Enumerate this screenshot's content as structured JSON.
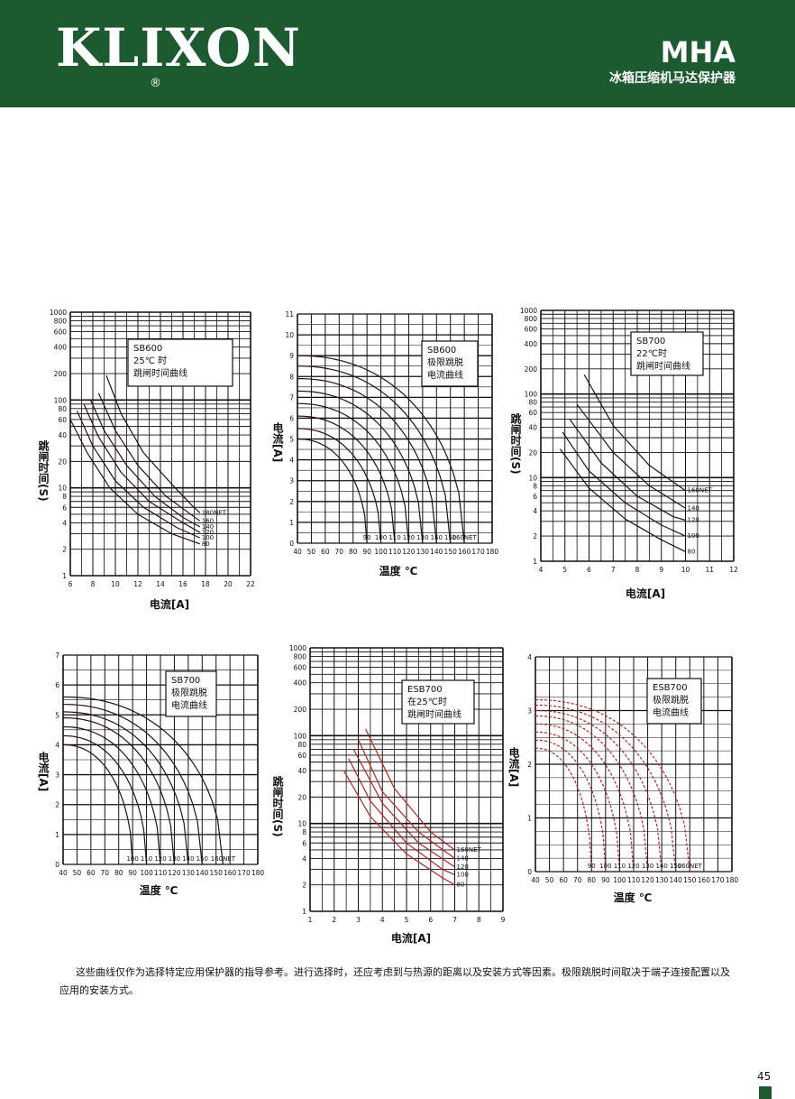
{
  "header": {
    "logo": "KLIXON",
    "logo_reg": "®",
    "model": "MHA",
    "subtitle": "冰箱压缩机马达保护器"
  },
  "footnote": "这些曲线仅作为选择特定应用保护器的指导参考。进行选择时，还应考虑到与热源的距离以及安装方式等因素。极限跳脱时间取决于端子连接配置以及应用的安装方式。",
  "page_number": "45",
  "colors": {
    "header_bg": "#1c5a30",
    "curve_dark": "#2a0e0e",
    "curve_red": "#c0201c",
    "grid": "#111111"
  },
  "chart_data": [
    {
      "type": "line",
      "legend": [
        "SB600",
        "25℃ 时",
        "跳闸时间曲线"
      ],
      "xlabel": "电流[A]",
      "ylabel": "跳闸时间(S)",
      "xlim": [
        6,
        22
      ],
      "ylim": [
        1,
        1000
      ],
      "yscale": "log",
      "x_ticks": [
        6,
        8,
        10,
        12,
        14,
        16,
        18,
        20,
        22
      ],
      "y_ticks": [
        1,
        2,
        4,
        6,
        8,
        10,
        20,
        40,
        60,
        80,
        100,
        200,
        400,
        600,
        800,
        1000
      ],
      "series": [
        {
          "name": "80",
          "x": [
            6.0,
            7.5,
            9.5,
            12.0,
            15.0,
            17.5
          ],
          "y": [
            60,
            25,
            10,
            5,
            3,
            2.3
          ]
        },
        {
          "name": "100",
          "x": [
            6.6,
            8.0,
            10.0,
            12.5,
            15.5,
            17.5
          ],
          "y": [
            75,
            30,
            12,
            6,
            3.5,
            2.7
          ]
        },
        {
          "name": "120",
          "x": [
            7.2,
            8.5,
            10.5,
            13.0,
            16.0,
            17.5
          ],
          "y": [
            90,
            38,
            15,
            7,
            4,
            3.1
          ]
        },
        {
          "name": "140",
          "x": [
            7.8,
            9.0,
            11.0,
            13.5,
            16.0,
            17.5
          ],
          "y": [
            100,
            45,
            18,
            8,
            4.6,
            3.6
          ]
        },
        {
          "name": "160",
          "x": [
            8.5,
            10.0,
            12.0,
            14.5,
            16.5,
            17.5
          ],
          "y": [
            120,
            45,
            18,
            8,
            5.2,
            4.2
          ]
        },
        {
          "name": "180NET",
          "x": [
            9.2,
            10.5,
            12.5,
            15.0,
            16.8,
            17.5
          ],
          "y": [
            190,
            70,
            25,
            11,
            6.3,
            5.2
          ]
        }
      ]
    },
    {
      "type": "line",
      "legend": [
        "SB600",
        "极限跳脱",
        "电流曲线"
      ],
      "xlabel": "温度 ℃",
      "ylabel": "电流[A]",
      "xlim": [
        40,
        180
      ],
      "ylim": [
        0,
        11
      ],
      "x_ticks": [
        40,
        50,
        60,
        70,
        80,
        90,
        100,
        110,
        120,
        130,
        140,
        150,
        160,
        170,
        180
      ],
      "y_ticks": [
        0,
        1,
        2,
        3,
        4,
        5,
        6,
        7,
        8,
        9,
        10,
        11
      ],
      "series": [
        {
          "name": "90",
          "x0": 40,
          "y0": 5.0,
          "xend": 90
        },
        {
          "name": "100",
          "x0": 40,
          "y0": 5.5,
          "xend": 100
        },
        {
          "name": "110",
          "x0": 40,
          "y0": 6.1,
          "xend": 110
        },
        {
          "name": "120",
          "x0": 40,
          "y0": 6.7,
          "xend": 120
        },
        {
          "name": "130",
          "x0": 40,
          "y0": 7.3,
          "xend": 130
        },
        {
          "name": "140",
          "x0": 40,
          "y0": 7.9,
          "xend": 140
        },
        {
          "name": "150",
          "x0": 40,
          "y0": 8.5,
          "xend": 150
        },
        {
          "name": "160NET",
          "x0": 40,
          "y0": 9.0,
          "xend": 160
        }
      ]
    },
    {
      "type": "line",
      "legend": [
        "SB700",
        "22℃时",
        "跳闸时间曲线"
      ],
      "xlabel": "电流[A]",
      "ylabel": "跳闸时间(S)",
      "xlim": [
        4,
        12
      ],
      "ylim": [
        1,
        1000
      ],
      "yscale": "log",
      "x_ticks": [
        4,
        5,
        6,
        7,
        8,
        9,
        10,
        11,
        12
      ],
      "y_ticks": [
        1,
        2,
        4,
        6,
        8,
        10,
        20,
        40,
        60,
        80,
        100,
        200,
        400,
        600,
        800,
        1000
      ],
      "series": [
        {
          "name": "80",
          "x": [
            4.8,
            6.0,
            7.5,
            9.0,
            10.0
          ],
          "y": [
            22,
            7.5,
            3.2,
            1.8,
            1.3
          ]
        },
        {
          "name": "100",
          "x": [
            4.9,
            6.0,
            7.5,
            9.0,
            10.0
          ],
          "y": [
            35,
            12,
            5,
            2.7,
            2.0
          ]
        },
        {
          "name": "120",
          "x": [
            5.2,
            6.5,
            8.0,
            9.5,
            10.0
          ],
          "y": [
            50,
            15,
            6,
            3.4,
            3.1
          ]
        },
        {
          "name": "140",
          "x": [
            5.5,
            7.0,
            8.5,
            10.0
          ],
          "y": [
            75,
            20,
            8,
            4.3
          ]
        },
        {
          "name": "160NET",
          "x": [
            5.8,
            7.0,
            8.5,
            10.0
          ],
          "y": [
            170,
            42,
            14,
            7
          ]
        }
      ]
    },
    {
      "type": "line",
      "legend": [
        "SB700",
        "极限跳脱",
        "电流曲线"
      ],
      "xlabel": "温度 ℃",
      "ylabel": "电流[A]",
      "xlim": [
        40,
        180
      ],
      "ylim": [
        0,
        7
      ],
      "x_ticks": [
        40,
        50,
        60,
        70,
        80,
        90,
        100,
        110,
        120,
        130,
        140,
        150,
        160,
        170,
        180
      ],
      "y_ticks": [
        0,
        1,
        2,
        3,
        4,
        5,
        6,
        7
      ],
      "series": [
        {
          "name": "100",
          "x0": 40,
          "y0": 4.0,
          "xend": 90
        },
        {
          "name": "110",
          "x0": 40,
          "y0": 4.3,
          "xend": 100
        },
        {
          "name": "120",
          "x0": 40,
          "y0": 4.6,
          "xend": 110
        },
        {
          "name": "130",
          "x0": 40,
          "y0": 4.9,
          "xend": 120
        },
        {
          "name": "140",
          "x0": 40,
          "y0": 5.1,
          "xend": 130
        },
        {
          "name": "150",
          "x0": 40,
          "y0": 5.35,
          "xend": 140
        },
        {
          "name": "160NET",
          "x0": 40,
          "y0": 5.6,
          "xend": 155
        }
      ]
    },
    {
      "type": "line",
      "legend": [
        "ESB700",
        "在25℃时",
        "跳闸时间曲线"
      ],
      "xlabel": "电流[A]",
      "ylabel": "跳闸时间(S)",
      "xlim": [
        1,
        9
      ],
      "ylim": [
        1,
        1000
      ],
      "yscale": "log",
      "x_ticks": [
        1,
        2,
        3,
        4,
        5,
        6,
        7,
        8,
        9
      ],
      "y_ticks": [
        1,
        2,
        4,
        6,
        8,
        10,
        20,
        40,
        60,
        80,
        100,
        200,
        400,
        600,
        800,
        1000
      ],
      "series": [
        {
          "name": "80",
          "x": [
            2.4,
            3.5,
            5.0,
            6.5,
            7.0
          ],
          "y": [
            40,
            12,
            4.5,
            2.4,
            2.0
          ]
        },
        {
          "name": "100",
          "x": [
            2.6,
            3.5,
            5.0,
            6.5,
            7.0
          ],
          "y": [
            55,
            18,
            6,
            3,
            2.6
          ]
        },
        {
          "name": "120",
          "x": [
            2.8,
            4.0,
            5.5,
            7.0
          ],
          "y": [
            70,
            17,
            6,
            3.2
          ]
        },
        {
          "name": "140",
          "x": [
            3.0,
            4.0,
            5.5,
            7.0
          ],
          "y": [
            90,
            23,
            8,
            4
          ]
        },
        {
          "name": "160NET",
          "x": [
            3.3,
            4.5,
            6.0,
            7.0
          ],
          "y": [
            120,
            25,
            8,
            5
          ]
        }
      ]
    },
    {
      "type": "line",
      "legend": [
        "ESB700",
        "极限跳脱",
        "电流曲线"
      ],
      "xlabel": "温度 ℃",
      "ylabel": "电流[A]",
      "xlim": [
        40,
        180
      ],
      "ylim": [
        0,
        4
      ],
      "x_ticks": [
        40,
        50,
        60,
        70,
        80,
        90,
        100,
        110,
        120,
        130,
        140,
        150,
        160,
        170,
        180
      ],
      "y_ticks": [
        0,
        1,
        2,
        3,
        4
      ],
      "series": [
        {
          "name": "90",
          "x0": 40,
          "y0": 2.3,
          "xend": 80
        },
        {
          "name": "100",
          "x0": 40,
          "y0": 2.45,
          "xend": 90
        },
        {
          "name": "110",
          "x0": 40,
          "y0": 2.6,
          "xend": 100
        },
        {
          "name": "120",
          "x0": 40,
          "y0": 2.75,
          "xend": 110
        },
        {
          "name": "130",
          "x0": 40,
          "y0": 2.9,
          "xend": 120
        },
        {
          "name": "140",
          "x0": 40,
          "y0": 3.0,
          "xend": 130
        },
        {
          "name": "150",
          "x0": 40,
          "y0": 3.1,
          "xend": 140
        },
        {
          "name": "160NET",
          "x0": 40,
          "y0": 3.2,
          "xend": 150
        }
      ]
    }
  ]
}
